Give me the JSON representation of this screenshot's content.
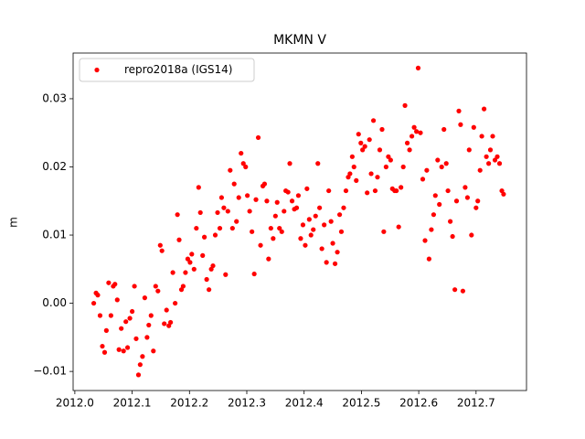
{
  "chart_data": {
    "type": "scatter",
    "title": "MKMN V",
    "ylabel": "m",
    "legend": "upper left",
    "xlim": [
      2011.997,
      2012.788
    ],
    "ylim": [
      -0.0128,
      0.0367
    ],
    "xticks": [
      {
        "value": 2012.0,
        "label": "2012.0"
      },
      {
        "value": 2012.1,
        "label": "2012.1"
      },
      {
        "value": 2012.2,
        "label": "2012.2"
      },
      {
        "value": 2012.3,
        "label": "2012.3"
      },
      {
        "value": 2012.4,
        "label": "2012.4"
      },
      {
        "value": 2012.5,
        "label": "2012.5"
      },
      {
        "value": 2012.6,
        "label": "2012.6"
      },
      {
        "value": 2012.7,
        "label": "2012.7"
      }
    ],
    "yticks": [
      {
        "value": -0.01,
        "label": "−0.01"
      },
      {
        "value": 0.0,
        "label": "0.00"
      },
      {
        "value": 0.01,
        "label": "0.01"
      },
      {
        "value": 0.02,
        "label": "0.02"
      },
      {
        "value": 0.03,
        "label": "0.03"
      }
    ],
    "series": [
      {
        "name": "repro2018a (IGS14)",
        "color": "#ff0000",
        "x": [
          2012.033,
          2012.037,
          2012.04,
          2012.044,
          2012.048,
          2012.052,
          2012.055,
          2012.059,
          2012.063,
          2012.067,
          2012.07,
          2012.074,
          2012.077,
          2012.081,
          2012.085,
          2012.089,
          2012.092,
          2012.096,
          2012.1,
          2012.104,
          2012.107,
          2012.111,
          2012.114,
          2012.118,
          2012.122,
          2012.126,
          2012.129,
          2012.133,
          2012.137,
          2012.141,
          2012.145,
          2012.149,
          2012.152,
          2012.156,
          2012.16,
          2012.164,
          2012.167,
          2012.171,
          2012.175,
          2012.179,
          2012.182,
          2012.186,
          2012.189,
          2012.193,
          2012.197,
          2012.201,
          2012.204,
          2012.208,
          2012.212,
          2012.216,
          2012.219,
          2012.223,
          2012.226,
          2012.23,
          2012.234,
          2012.238,
          2012.241,
          2012.245,
          2012.249,
          2012.253,
          2012.256,
          2012.26,
          2012.263,
          2012.267,
          2012.271,
          2012.275,
          2012.278,
          2012.282,
          2012.286,
          2012.29,
          2012.294,
          2012.298,
          2012.301,
          2012.305,
          2012.309,
          2012.313,
          2012.316,
          2012.32,
          2012.324,
          2012.328,
          2012.331,
          2012.335,
          2012.338,
          2012.342,
          2012.346,
          2012.35,
          2012.353,
          2012.357,
          2012.361,
          2012.365,
          2012.368,
          2012.372,
          2012.375,
          2012.379,
          2012.383,
          2012.387,
          2012.39,
          2012.394,
          2012.398,
          2012.402,
          2012.405,
          2012.409,
          2012.412,
          2012.416,
          2012.42,
          2012.424,
          2012.427,
          2012.431,
          2012.435,
          2012.439,
          2012.443,
          2012.447,
          2012.45,
          2012.454,
          2012.458,
          2012.462,
          2012.465,
          2012.469,
          2012.473,
          2012.477,
          2012.48,
          2012.484,
          2012.487,
          2012.491,
          2012.495,
          2012.499,
          2012.502,
          2012.506,
          2012.51,
          2012.514,
          2012.517,
          2012.521,
          2012.524,
          2012.528,
          2012.532,
          2012.536,
          2012.539,
          2012.543,
          2012.547,
          2012.551,
          2012.554,
          2012.558,
          2012.561,
          2012.565,
          2012.569,
          2012.573,
          2012.576,
          2012.58,
          2012.584,
          2012.588,
          2012.592,
          2012.596,
          2012.599,
          2012.603,
          2012.607,
          2012.611,
          2012.614,
          2012.618,
          2012.622,
          2012.626,
          2012.629,
          2012.633,
          2012.636,
          2012.64,
          2012.644,
          2012.648,
          2012.651,
          2012.655,
          2012.659,
          2012.663,
          2012.666,
          2012.67,
          2012.673,
          2012.677,
          2012.681,
          2012.685,
          2012.688,
          2012.692,
          2012.696,
          2012.7,
          2012.703,
          2012.707,
          2012.71,
          2012.714,
          2012.718,
          2012.722,
          2012.725,
          2012.729,
          2012.733,
          2012.737,
          2012.741,
          2012.745,
          2012.748
        ],
        "values": [
          0.0,
          0.0015,
          0.0012,
          -0.0018,
          -0.0063,
          -0.0072,
          -0.004,
          0.003,
          -0.0018,
          0.0025,
          0.0028,
          0.0005,
          -0.0068,
          -0.0037,
          -0.007,
          -0.0027,
          -0.0065,
          -0.0022,
          -0.0012,
          0.0025,
          -0.0052,
          -0.0105,
          -0.009,
          -0.0078,
          0.0008,
          -0.005,
          -0.0032,
          -0.0018,
          -0.007,
          0.0025,
          0.0018,
          0.0085,
          0.0077,
          -0.003,
          -0.001,
          -0.0033,
          -0.0028,
          0.0045,
          0.0,
          0.013,
          0.0093,
          0.002,
          0.0025,
          0.0045,
          0.0065,
          0.006,
          0.0072,
          0.005,
          0.011,
          0.017,
          0.0133,
          0.007,
          0.0097,
          0.0035,
          0.002,
          0.005,
          0.0055,
          0.01,
          0.0133,
          0.011,
          0.0155,
          0.014,
          0.0042,
          0.0135,
          0.0195,
          0.011,
          0.0175,
          0.012,
          0.0155,
          0.022,
          0.0205,
          0.02,
          0.0158,
          0.0135,
          0.0105,
          0.0043,
          0.0152,
          0.0243,
          0.0085,
          0.0172,
          0.0175,
          0.015,
          0.0065,
          0.011,
          0.0095,
          0.0128,
          0.0148,
          0.011,
          0.0105,
          0.0135,
          0.0165,
          0.0163,
          0.0205,
          0.015,
          0.0138,
          0.014,
          0.0158,
          0.0095,
          0.0115,
          0.0085,
          0.0168,
          0.0123,
          0.01,
          0.0108,
          0.0128,
          0.0205,
          0.014,
          0.008,
          0.0115,
          0.006,
          0.0165,
          0.012,
          0.0088,
          0.0058,
          0.0075,
          0.013,
          0.0105,
          0.014,
          0.0165,
          0.0185,
          0.019,
          0.0215,
          0.02,
          0.018,
          0.0248,
          0.0235,
          0.0225,
          0.023,
          0.0162,
          0.024,
          0.019,
          0.0268,
          0.0165,
          0.0185,
          0.0225,
          0.0255,
          0.0105,
          0.02,
          0.0215,
          0.021,
          0.0168,
          0.0165,
          0.0165,
          0.0112,
          0.017,
          0.02,
          0.029,
          0.0235,
          0.0225,
          0.0245,
          0.0258,
          0.0252,
          0.0345,
          0.025,
          0.0182,
          0.0092,
          0.0195,
          0.0065,
          0.0108,
          0.013,
          0.0158,
          0.021,
          0.0145,
          0.02,
          0.0255,
          0.0205,
          0.0165,
          0.012,
          0.0098,
          0.002,
          0.015,
          0.0282,
          0.0262,
          0.0018,
          0.017,
          0.0155,
          0.0225,
          0.01,
          0.0258,
          0.014,
          0.015,
          0.0195,
          0.0245,
          0.0285,
          0.0215,
          0.0205,
          0.0225,
          0.0245,
          0.021,
          0.0215,
          0.0205,
          0.0165,
          0.016
        ]
      }
    ]
  }
}
